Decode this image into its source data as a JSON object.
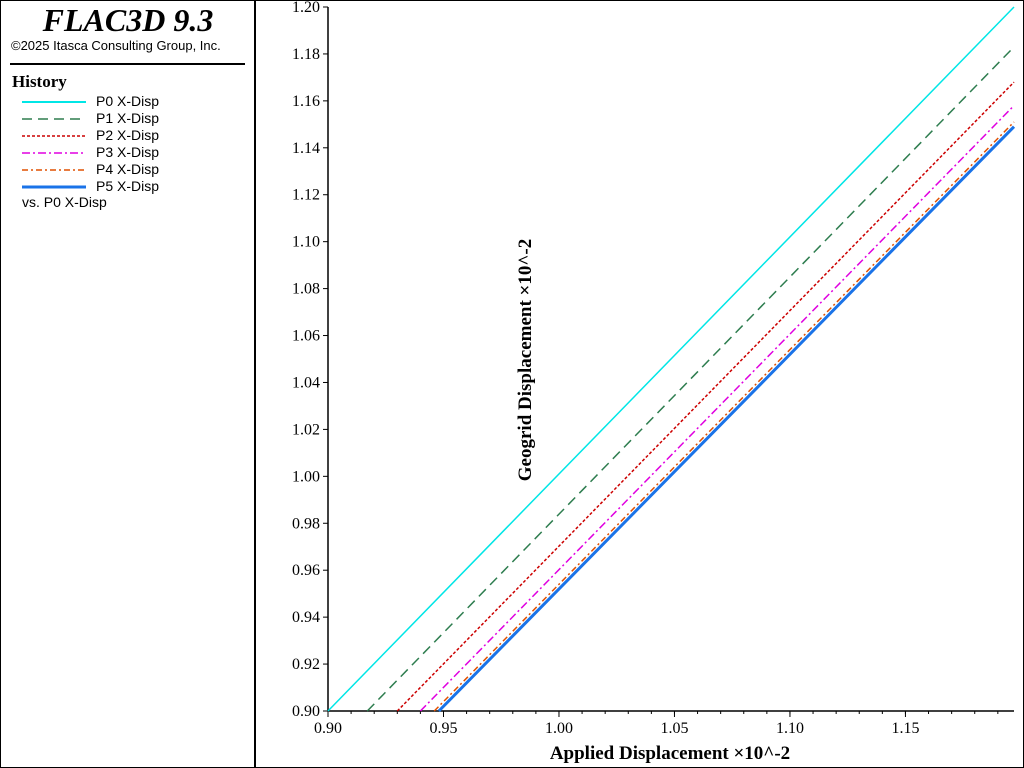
{
  "app": {
    "title": "FLAC3D 9.3",
    "copyright": "©2025 Itasca Consulting Group, Inc."
  },
  "legend": {
    "title": "History",
    "vs_label": "vs. P0 X-Disp"
  },
  "chart_data": {
    "type": "line",
    "title": "",
    "xlabel": "Applied Displacement ×10^-2",
    "ylabel": "Geogrid Displacement ×10^-2",
    "xlim": [
      0.9,
      1.197
    ],
    "ylim": [
      0.9,
      1.2
    ],
    "xticks": [
      "0.90",
      "0.95",
      "1.00",
      "1.05",
      "1.10",
      "1.15"
    ],
    "yticks": [
      "0.90",
      "0.92",
      "0.94",
      "0.96",
      "0.98",
      "1.00",
      "1.02",
      "1.04",
      "1.06",
      "1.08",
      "1.10",
      "1.12",
      "1.14",
      "1.16",
      "1.18",
      "1.20"
    ],
    "grid": false,
    "legend_position": "left panel",
    "series": [
      {
        "name": "P0 X-Disp",
        "color": "#00e6e6",
        "dash": "solid",
        "width": 1.5,
        "x": [
          0.9,
          1.197
        ],
        "y": [
          0.9,
          1.2
        ]
      },
      {
        "name": "P1 X-Disp",
        "color": "#2e7d4f",
        "dash": "dashed",
        "width": 1.5,
        "x": [
          0.917,
          1.197
        ],
        "y": [
          0.9,
          1.183
        ]
      },
      {
        "name": "P2 X-Disp",
        "color": "#cc0000",
        "dash": "dotted",
        "width": 1.5,
        "x": [
          0.93,
          1.197
        ],
        "y": [
          0.9,
          1.168
        ]
      },
      {
        "name": "P3 X-Disp",
        "color": "#e000e0",
        "dash": "dashdot",
        "width": 1.5,
        "x": [
          0.94,
          1.197
        ],
        "y": [
          0.9,
          1.158
        ]
      },
      {
        "name": "P4 X-Disp",
        "color": "#e05000",
        "dash": "dashdot",
        "width": 1.5,
        "x": [
          0.946,
          1.197
        ],
        "y": [
          0.9,
          1.151
        ]
      },
      {
        "name": "P5 X-Disp",
        "color": "#1a73e8",
        "dash": "solid",
        "width": 3,
        "x": [
          0.948,
          1.197
        ],
        "y": [
          0.9,
          1.149
        ]
      }
    ]
  }
}
